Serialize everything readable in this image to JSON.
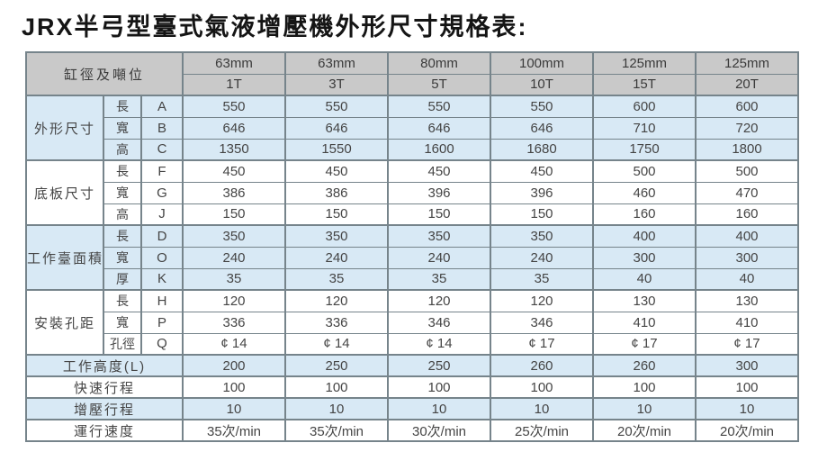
{
  "page": {
    "title": "JRX半弓型臺式氣液增壓機外形尺寸規格表:"
  },
  "colors": {
    "header_bg": "#c9c9c9",
    "row_blue": "#d8e9f5",
    "row_white": "#ffffff",
    "border": "#76848b",
    "text": "#454545",
    "title_color": "#151515",
    "page_bg": "#ffffff"
  },
  "table": {
    "corner_label": "缸徑及噸位",
    "columns": [
      {
        "diameter": "63mm",
        "tonnage": "1T"
      },
      {
        "diameter": "63mm",
        "tonnage": "3T"
      },
      {
        "diameter": "80mm",
        "tonnage": "5T"
      },
      {
        "diameter": "100mm",
        "tonnage": "10T"
      },
      {
        "diameter": "125mm",
        "tonnage": "15T"
      },
      {
        "diameter": "125mm",
        "tonnage": "20T"
      }
    ],
    "sections": [
      {
        "label": "外形尺寸",
        "shade": "blue",
        "rows": [
          {
            "dim": "長",
            "code": "A",
            "values": [
              "550",
              "550",
              "550",
              "550",
              "600",
              "600"
            ]
          },
          {
            "dim": "寬",
            "code": "B",
            "values": [
              "646",
              "646",
              "646",
              "646",
              "710",
              "720"
            ]
          },
          {
            "dim": "高",
            "code": "C",
            "values": [
              "1350",
              "1550",
              "1600",
              "1680",
              "1750",
              "1800"
            ]
          }
        ]
      },
      {
        "label": "底板尺寸",
        "shade": "white",
        "rows": [
          {
            "dim": "長",
            "code": "F",
            "values": [
              "450",
              "450",
              "450",
              "450",
              "500",
              "500"
            ]
          },
          {
            "dim": "寬",
            "code": "G",
            "values": [
              "386",
              "386",
              "396",
              "396",
              "460",
              "470"
            ]
          },
          {
            "dim": "高",
            "code": "J",
            "values": [
              "150",
              "150",
              "150",
              "150",
              "160",
              "160"
            ]
          }
        ]
      },
      {
        "label": "工作臺面積",
        "shade": "blue",
        "rows": [
          {
            "dim": "長",
            "code": "D",
            "values": [
              "350",
              "350",
              "350",
              "350",
              "400",
              "400"
            ]
          },
          {
            "dim": "寬",
            "code": "O",
            "values": [
              "240",
              "240",
              "240",
              "240",
              "300",
              "300"
            ]
          },
          {
            "dim": "厚",
            "code": "K",
            "values": [
              "35",
              "35",
              "35",
              "35",
              "40",
              "40"
            ]
          }
        ]
      },
      {
        "label": "安裝孔距",
        "shade": "white",
        "rows": [
          {
            "dim": "長",
            "code": "H",
            "values": [
              "120",
              "120",
              "120",
              "120",
              "130",
              "130"
            ]
          },
          {
            "dim": "寬",
            "code": "P",
            "values": [
              "336",
              "336",
              "346",
              "346",
              "410",
              "410"
            ]
          },
          {
            "dim": "孔徑",
            "code": "Q",
            "values": [
              "¢ 14",
              "¢ 14",
              "¢ 14",
              "¢ 17",
              "¢ 17",
              "¢ 17"
            ]
          }
        ]
      }
    ],
    "summary_rows": [
      {
        "label": "工作高度(L)",
        "shade": "blue",
        "values": [
          "200",
          "250",
          "250",
          "260",
          "260",
          "300"
        ]
      },
      {
        "label": "快速行程",
        "shade": "white",
        "values": [
          "100",
          "100",
          "100",
          "100",
          "100",
          "100"
        ]
      },
      {
        "label": "增壓行程",
        "shade": "blue",
        "values": [
          "10",
          "10",
          "10",
          "10",
          "10",
          "10"
        ]
      },
      {
        "label": "運行速度",
        "shade": "white",
        "values": [
          "35次/min",
          "35次/min",
          "30次/min",
          "25次/min",
          "20次/min",
          "20次/min"
        ]
      }
    ]
  }
}
